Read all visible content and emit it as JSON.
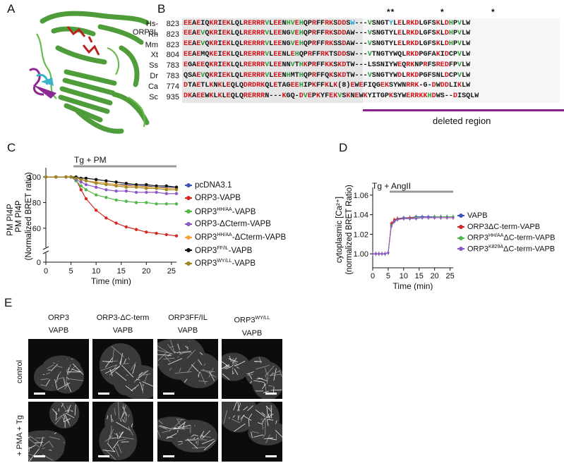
{
  "panels": {
    "A": "A",
    "B": "B",
    "C": "C",
    "D": "D",
    "E": "E"
  },
  "alignment": {
    "stars": [
      "**",
      "*",
      "*"
    ],
    "rows": [
      {
        "species": "Hs-ORP3L",
        "pos": "823",
        "seq": [
          [
            "EEAE",
            "k"
          ],
          [
            "I",
            "k"
          ],
          [
            "QKRIE",
            "k"
          ],
          [
            "KLQLRERRRVLEENHVEHQPRFFRKSDDS",
            "k"
          ],
          [
            "W",
            "b"
          ],
          [
            "---VSNGT",
            "k"
          ],
          [
            "Y",
            "b"
          ],
          [
            "LELRKDLGFSKLDHPVLW",
            "k"
          ]
        ]
      },
      {
        "species": "Rn",
        "pos": "823",
        "seq": [
          [
            "EEAEVQKRIEKLQLRERRRVLEENGVEHQPRFFRKSDDAW---VSNGTYLELRKDLGFSKLDHPVLW",
            "k"
          ]
        ]
      },
      {
        "species": "Mm",
        "pos": "823",
        "seq": [
          [
            "EEAEVQKRIEKLQLRERRRVLEENGVEHQPRFFRKSSDAW---VSNGTYLELRKDLGFSKLDHPVLW",
            "k"
          ]
        ]
      },
      {
        "species": "Xt",
        "pos": "804",
        "seq": [
          [
            "EEAEMQKEIEKLQLRERRRVLEENLEHQPRFFRKTSDDSW---VTNGTYWQLRKDPGFAKIDCPVLW",
            "k"
          ]
        ]
      },
      {
        "species": "Ss",
        "pos": "783",
        "seq": [
          [
            "EGAEEQKRIEKLQLRERRRVLEENNVTHKPRFFKKSKDTW---LSSNIYWEQRKNPRFSREDFPVLW",
            "k"
          ]
        ]
      },
      {
        "species": "Dr",
        "pos": "783",
        "seq": [
          [
            "QSAEVQKRIEKLQLRERRRVLEENHMTHQPRFFQKSKDTW---VSNGTYWDLRKDPGFSNLDCPVLW",
            "k"
          ]
        ]
      },
      {
        "species": "Ca",
        "pos": "774",
        "seq": [
          [
            "DTAETLKNKLEQLQDRDRKQLETAGEEHIPKFFKLK(8)EWEFIQGEKSYWNRRK-G-DWDDLIKLW",
            "k"
          ]
        ]
      },
      {
        "species": "Sc",
        "pos": "935",
        "seq": [
          [
            "DKAEEWKLKLEQLQRERRRN---KGQ-DVEPKYFEKVSKNEWKYITGPKSYWERRKKHDWS--DISQLW",
            "k"
          ]
        ]
      }
    ],
    "deleted_label": "deleted region",
    "deleted_color": "#8a1f8e"
  },
  "panel_C": {
    "treatment_label": "Tg + PM",
    "ylabel_line1": "PM PI4P",
    "ylabel_line2": "(Normalized BRET ratio)",
    "xlabel": "Time (min)",
    "yticks": [
      "100",
      "80",
      "60",
      "0"
    ],
    "xticks": [
      "0",
      "5",
      "10",
      "15",
      "20",
      "25"
    ],
    "legend": [
      {
        "label": "pcDNA3.1",
        "sup": "",
        "suffix": "",
        "color": "#3a56b8"
      },
      {
        "label": "ORP3-VAPB",
        "sup": "",
        "suffix": "",
        "color": "#d6281e"
      },
      {
        "label": "ORP3",
        "sup": "HH/AA",
        "suffix": "-VAPB",
        "color": "#4fb848"
      },
      {
        "label": "ORP3-ΔCterm-VAPB",
        "sup": "",
        "suffix": "",
        "color": "#8e57c7"
      },
      {
        "label": "ORP3",
        "sup": "HH/AA",
        "suffix": "-ΔCterm-VAPB",
        "color": "#f3a433"
      },
      {
        "label": "ORP3",
        "sup": "FF/IL",
        "suffix": "-VAPB",
        "color": "#111111"
      },
      {
        "label": "ORP3",
        "sup": "WY/LL",
        "suffix": "-VAPB",
        "color": "#a0851e"
      }
    ]
  },
  "panel_D": {
    "treatment_label": "Tg + AngII",
    "ylabel_line1": "cytoplasmic [Ca²⁺]",
    "ylabel_line2": "(normalized BRET Ratio)",
    "xlabel": "Time (min)",
    "yticks": [
      "1.06",
      "1.04",
      "1.02",
      "1.00"
    ],
    "xticks": [
      "0",
      "5",
      "10",
      "15",
      "20",
      "25"
    ],
    "legend": [
      {
        "label": "VAPB",
        "sup": "",
        "suffix": "",
        "color": "#3a56b8"
      },
      {
        "label": "ORP3ΔC-term-VAPB",
        "sup": "",
        "suffix": "",
        "color": "#d6281e"
      },
      {
        "label": "ORP3",
        "sup": "HH/AA",
        "suffix": "ΔC-term-VAPB",
        "color": "#4fb848"
      },
      {
        "label": "ORP3",
        "sup": "K829A",
        "suffix": "ΔC-term-VAPB",
        "color": "#8e57c7"
      }
    ]
  },
  "panel_E": {
    "columns": [
      {
        "line1": "ORP3",
        "sup": "",
        "line2": "VAPB"
      },
      {
        "line1": "ORP3-ΔC-term",
        "sup": "",
        "line2": "VAPB"
      },
      {
        "line1": "ORP3FF/IL",
        "sup": "",
        "line2": "VAPB"
      },
      {
        "line1": "ORP3",
        "sup": "WY/LL",
        "line2": "VAPB"
      }
    ],
    "rows": [
      "control",
      "+ PMA + Tg"
    ]
  },
  "chart_data": [
    {
      "type": "line",
      "title": "",
      "xlabel": "Time (min)",
      "ylabel": "PM PI4P (Normalized BRET ratio)",
      "xlim": [
        0,
        26
      ],
      "ylim": [
        50,
        105
      ],
      "x": [
        0,
        2,
        4,
        5,
        6,
        7,
        8,
        10,
        12,
        14,
        16,
        18,
        20,
        22,
        24,
        26
      ],
      "series": [
        {
          "name": "pcDNA3.1",
          "color": "#3a56b8",
          "values": [
            100,
            100,
            100,
            100,
            99,
            98,
            97,
            96,
            95,
            94,
            94,
            93,
            93,
            92,
            92,
            92
          ]
        },
        {
          "name": "ORP3-VAPB",
          "color": "#d6281e",
          "values": [
            100,
            100,
            100,
            100,
            98,
            90,
            83,
            74,
            68,
            64,
            61,
            59,
            57,
            56,
            55,
            54
          ]
        },
        {
          "name": "ORP3HH/AA-VAPB",
          "color": "#4fb848",
          "values": [
            100,
            100,
            100,
            100,
            97,
            93,
            90,
            86,
            84,
            82,
            81,
            80,
            80,
            79,
            79,
            79
          ]
        },
        {
          "name": "ORP3-ΔCterm-VAPB",
          "color": "#8e57c7",
          "values": [
            100,
            100,
            100,
            100,
            98,
            96,
            94,
            92,
            90,
            89,
            89,
            88,
            88,
            88,
            87,
            87
          ]
        },
        {
          "name": "ORP3HH/AA-ΔCterm-VAPB",
          "color": "#f3a433",
          "values": [
            100,
            100,
            100,
            100,
            99,
            98,
            97,
            96,
            95,
            94,
            93,
            93,
            92,
            92,
            91,
            91
          ]
        },
        {
          "name": "ORP3FF/IL-VAPB",
          "color": "#111111",
          "values": [
            100,
            100,
            100,
            100,
            100,
            99,
            99,
            98,
            97,
            96,
            95,
            94,
            94,
            93,
            93,
            92
          ]
        },
        {
          "name": "ORP3WY/LL-VAPB",
          "color": "#a0851e",
          "values": [
            100,
            100,
            100,
            100,
            99,
            98,
            97,
            95,
            94,
            93,
            92,
            92,
            91,
            91,
            90,
            90
          ]
        }
      ]
    },
    {
      "type": "line",
      "title": "",
      "xlabel": "Time (min)",
      "ylabel": "cytoplasmic [Ca2+] (normalized BRET Ratio)",
      "xlim": [
        0,
        26
      ],
      "ylim": [
        0.99,
        1.065
      ],
      "x": [
        0,
        1,
        2,
        3,
        4,
        5,
        6,
        7,
        8,
        10,
        12,
        14,
        16,
        18,
        20,
        22,
        24,
        26
      ],
      "series": [
        {
          "name": "VAPB",
          "color": "#3a56b8",
          "values": [
            1.0,
            1.0,
            1.0,
            1.0,
            1.0,
            1.001,
            1.03,
            1.034,
            1.036,
            1.037,
            1.037,
            1.038,
            1.038,
            1.038,
            1.038,
            1.038,
            1.038,
            1.038
          ]
        },
        {
          "name": "ORP3ΔC-term-VAPB",
          "color": "#d6281e",
          "values": [
            1.0,
            1.0,
            1.0,
            1.0,
            1.0,
            1.001,
            1.031,
            1.035,
            1.036,
            1.036,
            1.037,
            1.037,
            1.037,
            1.037,
            1.037,
            1.037,
            1.037,
            1.037
          ]
        },
        {
          "name": "ORP3HH/AAΔC-term-VAPB",
          "color": "#4fb848",
          "values": [
            1.0,
            1.0,
            1.0,
            1.0,
            1.0,
            1.001,
            1.029,
            1.033,
            1.035,
            1.036,
            1.036,
            1.037,
            1.037,
            1.037,
            1.038,
            1.038,
            1.038,
            1.038
          ]
        },
        {
          "name": "ORP3K829AΔC-term-VAPB",
          "color": "#8e57c7",
          "values": [
            1.0,
            1.0,
            1.0,
            1.0,
            1.0,
            1.001,
            1.028,
            1.033,
            1.035,
            1.036,
            1.036,
            1.036,
            1.037,
            1.037,
            1.037,
            1.037,
            1.037,
            1.037
          ]
        }
      ]
    }
  ]
}
